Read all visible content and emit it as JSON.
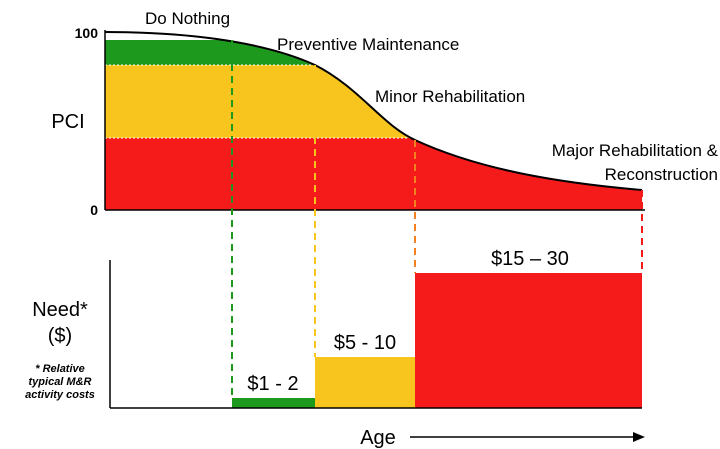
{
  "top_chart": {
    "y_axis_label": "PCI",
    "y_top": "100",
    "y_bottom": "0",
    "stages": [
      "Do Nothing",
      "Preventive Maintenance",
      "Minor Rehabilitation",
      "Major Rehabilitation &",
      "Reconstruction"
    ]
  },
  "bottom_chart": {
    "y_axis_label": [
      "Need*",
      "($)"
    ],
    "note": [
      "* Relative",
      "typical M&R",
      "activity costs"
    ],
    "costs": [
      "$1 - 2",
      "$5 - 10",
      "$15 – 30"
    ],
    "x_axis_label": "Age"
  }
}
